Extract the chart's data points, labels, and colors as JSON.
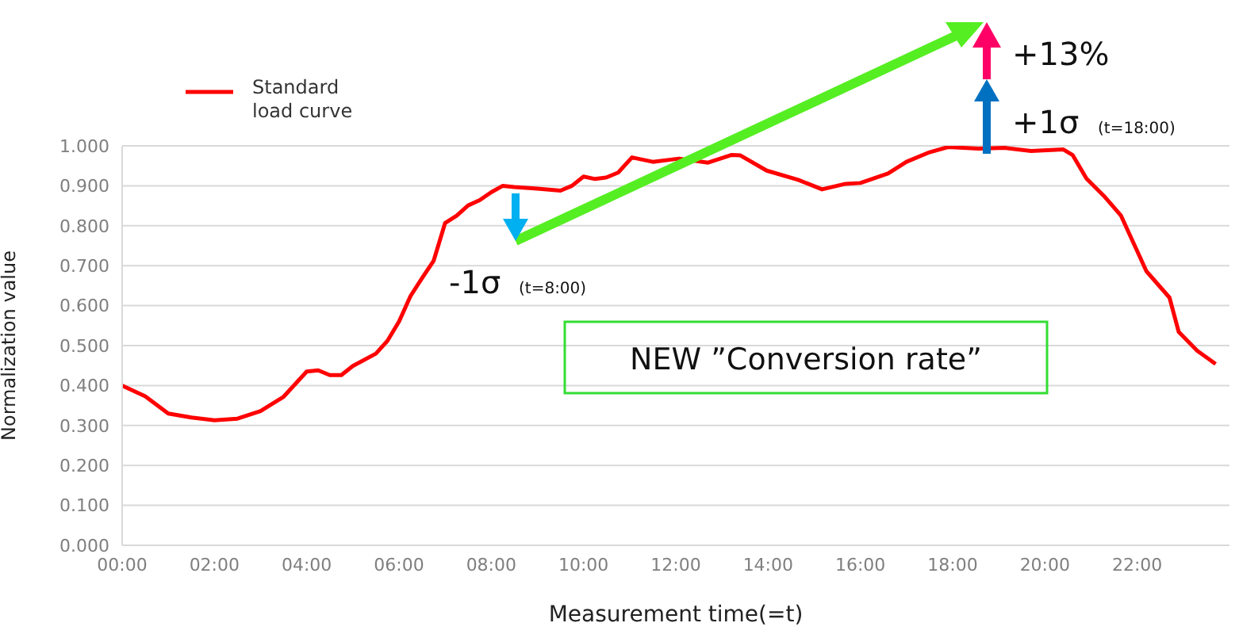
{
  "chart_data": {
    "type": "line",
    "xlabel": "Measurement time(=t)",
    "ylabel": "Normalization value",
    "x": [
      0,
      0.5,
      1,
      1.5,
      2,
      2.5,
      3,
      3.5,
      4,
      4.25,
      4.5,
      4.75,
      5,
      5.5,
      5.75,
      6,
      6.25,
      6.5,
      6.75,
      7,
      7.25,
      7.5,
      7.75,
      8,
      8.25,
      8.5,
      9,
      9.5,
      9.75,
      10,
      10.25,
      10.5,
      10.75,
      11.05,
      11.5,
      12.07,
      12.7,
      13.2,
      13.4,
      13.97,
      14.65,
      15.17,
      15.68,
      16,
      16.6,
      17,
      17.5,
      17.9,
      18.56,
      19.13,
      19.7,
      20.4,
      20.6,
      20.9,
      21.3,
      21.65,
      21.99,
      22.2,
      22.7,
      22.9,
      23.3,
      23.7
    ],
    "series": [
      {
        "name": "Standard load curve",
        "color": "#ff0000",
        "values": [
          0.4,
          0.373,
          0.33,
          0.32,
          0.313,
          0.317,
          0.336,
          0.372,
          0.435,
          0.438,
          0.426,
          0.426,
          0.449,
          0.48,
          0.512,
          0.56,
          0.624,
          0.669,
          0.712,
          0.807,
          0.825,
          0.851,
          0.864,
          0.884,
          0.9,
          0.897,
          0.893,
          0.888,
          0.9,
          0.923,
          0.917,
          0.921,
          0.933,
          0.971,
          0.96,
          0.968,
          0.958,
          0.977,
          0.976,
          0.938,
          0.915,
          0.891,
          0.905,
          0.907,
          0.931,
          0.96,
          0.984,
          0.997,
          0.993,
          0.995,
          0.987,
          0.991,
          0.977,
          0.918,
          0.872,
          0.825,
          0.739,
          0.686,
          0.62,
          0.534,
          0.487,
          0.454
        ]
      }
    ],
    "xlim": [
      0,
      24
    ],
    "xticks": [
      {
        "value": 0,
        "label": "00:00"
      },
      {
        "value": 2,
        "label": "02:00"
      },
      {
        "value": 4,
        "label": "04:00"
      },
      {
        "value": 6,
        "label": "06:00"
      },
      {
        "value": 8,
        "label": "08:00"
      },
      {
        "value": 10,
        "label": "10:00"
      },
      {
        "value": 12,
        "label": "12:00"
      },
      {
        "value": 14,
        "label": "14:00"
      },
      {
        "value": 16,
        "label": "16:00"
      },
      {
        "value": 18,
        "label": "18:00"
      },
      {
        "value": 20,
        "label": "20:00"
      },
      {
        "value": 22,
        "label": "22:00"
      }
    ],
    "ylim": [
      0,
      1
    ],
    "yticks": [
      {
        "value": 0,
        "label": "0.000"
      },
      {
        "value": 0.1,
        "label": "0.100"
      },
      {
        "value": 0.2,
        "label": "0.200"
      },
      {
        "value": 0.3,
        "label": "0.300"
      },
      {
        "value": 0.4,
        "label": "0.400"
      },
      {
        "value": 0.5,
        "label": "0.500"
      },
      {
        "value": 0.6,
        "label": "0.600"
      },
      {
        "value": 0.7,
        "label": "0.700"
      },
      {
        "value": 0.8,
        "label": "0.800"
      },
      {
        "value": 0.9,
        "label": "0.900"
      },
      {
        "value": 1,
        "label": "1.000"
      }
    ],
    "grid": "y",
    "legend": "top left",
    "marker": "none",
    "line_style": "solid",
    "annotations": [
      "-1σ",
      "(t=8:00)",
      "+1σ",
      "(t=18:00)",
      "+13%",
      "NEW ”Conversion rate”"
    ]
  }
}
